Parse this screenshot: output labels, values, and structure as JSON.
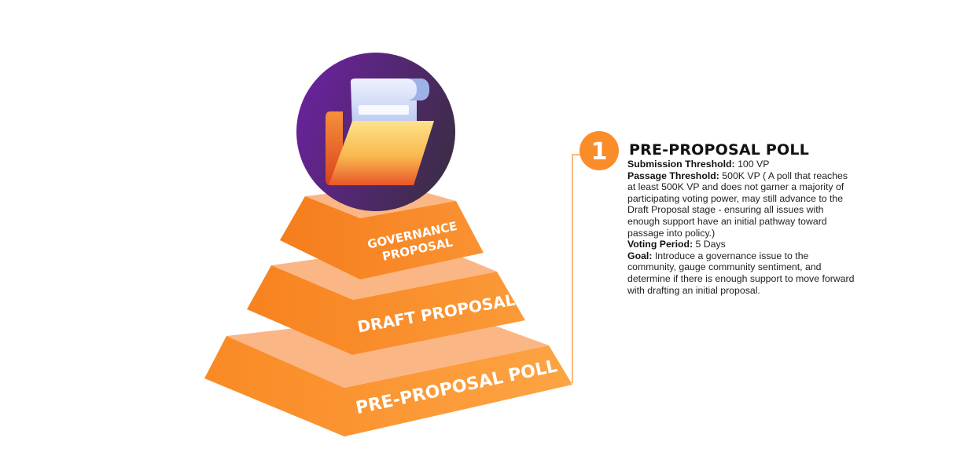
{
  "pyramid": {
    "tiers": [
      {
        "lines": [
          "GOVERNANCE",
          "PROPOSAL"
        ]
      },
      {
        "lines": [
          "DRAFT PROPOSAL"
        ]
      },
      {
        "lines": [
          "PRE-PROPOSAL POLL"
        ]
      }
    ],
    "icon": "open-folder-with-document-icon"
  },
  "colors": {
    "orange": "#fb8c2a",
    "orange_light": "#fbb685",
    "orange_dark": "#f47a1a",
    "purple": "#6a2a9c",
    "purple_dark": "#3a2c45",
    "connector": "#f5a24f"
  },
  "detail": {
    "step_number": "1",
    "title": "PRE-PROPOSAL POLL",
    "submission": {
      "label": "Submission Threshold:",
      "value": " 100 VP"
    },
    "passage": {
      "label": "Passage Threshold:",
      "value": " 500K VP ( A poll that reaches at least 500K VP and does not garner a majority of participating voting power, may still advance to the Draft Proposal stage - ensuring all issues with enough support have an initial pathway toward passage into policy.)"
    },
    "voting": {
      "label": "Voting Period:",
      "value": " 5 Days"
    },
    "goal": {
      "label": "Goal:",
      "value": " Introduce a governance issue to the community, gauge community sentiment, and determine if there is enough support to move forward with drafting an initial proposal."
    }
  }
}
